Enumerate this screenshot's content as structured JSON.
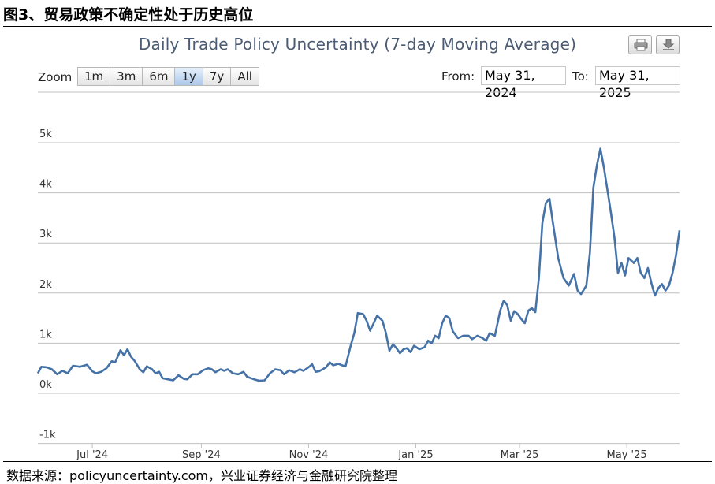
{
  "figure_title": "图3、贸易政策不确定性处于历史高位",
  "source": "数据来源：policyuncertainty.com，兴业证券经济与金融研究院整理",
  "toolbar": {
    "zoom_label": "Zoom",
    "zoom_buttons": [
      {
        "label": "1m",
        "active": false
      },
      {
        "label": "3m",
        "active": false
      },
      {
        "label": "6m",
        "active": false
      },
      {
        "label": "1y",
        "active": true
      },
      {
        "label": "7y",
        "active": false
      },
      {
        "label": "All",
        "active": false
      }
    ],
    "from_label": "From:",
    "from_value": "May 31, 2024",
    "to_label": "To:",
    "to_value": "May 31, 2025",
    "print_icon": "print-icon",
    "download_icon": "download-icon"
  },
  "chart_data": {
    "type": "line",
    "title": "Daily Trade Policy Uncertainty (7-day Moving Average)",
    "y_ticks": [
      {
        "value": -1000,
        "label": "-1k"
      },
      {
        "value": 0,
        "label": "0k"
      },
      {
        "value": 1000,
        "label": "1k"
      },
      {
        "value": 2000,
        "label": "2k"
      },
      {
        "value": 3000,
        "label": "3k"
      },
      {
        "value": 4000,
        "label": "4k"
      },
      {
        "value": 5000,
        "label": "5k"
      }
    ],
    "x_ticks": [
      {
        "date": "2024-07-01",
        "label": "Jul '24"
      },
      {
        "date": "2024-09-01",
        "label": "Sep '24"
      },
      {
        "date": "2024-11-01",
        "label": "Nov '24"
      },
      {
        "date": "2025-01-01",
        "label": "Jan '25"
      },
      {
        "date": "2025-03-01",
        "label": "Mar '25"
      },
      {
        "date": "2025-05-01",
        "label": "May '25"
      }
    ],
    "ylim": [
      -1000,
      5000
    ],
    "xlim": [
      "2024-05-31",
      "2025-05-31"
    ],
    "line_color": "#4572a7",
    "grid": true,
    "points": [
      [
        "2024-05-31",
        400
      ],
      [
        "2024-06-02",
        530
      ],
      [
        "2024-06-05",
        520
      ],
      [
        "2024-06-08",
        480
      ],
      [
        "2024-06-11",
        380
      ],
      [
        "2024-06-14",
        450
      ],
      [
        "2024-06-17",
        400
      ],
      [
        "2024-06-20",
        550
      ],
      [
        "2024-06-24",
        530
      ],
      [
        "2024-06-28",
        570
      ],
      [
        "2024-07-01",
        440
      ],
      [
        "2024-07-03",
        400
      ],
      [
        "2024-07-06",
        430
      ],
      [
        "2024-07-09",
        500
      ],
      [
        "2024-07-12",
        640
      ],
      [
        "2024-07-14",
        620
      ],
      [
        "2024-07-17",
        860
      ],
      [
        "2024-07-19",
        760
      ],
      [
        "2024-07-21",
        880
      ],
      [
        "2024-07-23",
        730
      ],
      [
        "2024-07-25",
        650
      ],
      [
        "2024-07-28",
        480
      ],
      [
        "2024-07-30",
        420
      ],
      [
        "2024-08-01",
        540
      ],
      [
        "2024-08-04",
        480
      ],
      [
        "2024-08-06",
        400
      ],
      [
        "2024-08-08",
        430
      ],
      [
        "2024-08-10",
        300
      ],
      [
        "2024-08-13",
        280
      ],
      [
        "2024-08-16",
        260
      ],
      [
        "2024-08-19",
        360
      ],
      [
        "2024-08-22",
        290
      ],
      [
        "2024-08-24",
        280
      ],
      [
        "2024-08-27",
        380
      ],
      [
        "2024-08-30",
        380
      ],
      [
        "2024-09-02",
        460
      ],
      [
        "2024-09-05",
        500
      ],
      [
        "2024-09-07",
        480
      ],
      [
        "2024-09-09",
        420
      ],
      [
        "2024-09-12",
        480
      ],
      [
        "2024-09-14",
        450
      ],
      [
        "2024-09-16",
        480
      ],
      [
        "2024-09-19",
        400
      ],
      [
        "2024-09-22",
        380
      ],
      [
        "2024-09-25",
        430
      ],
      [
        "2024-09-27",
        330
      ],
      [
        "2024-10-01",
        280
      ],
      [
        "2024-10-04",
        250
      ],
      [
        "2024-10-07",
        260
      ],
      [
        "2024-10-10",
        400
      ],
      [
        "2024-10-13",
        480
      ],
      [
        "2024-10-16",
        460
      ],
      [
        "2024-10-18",
        380
      ],
      [
        "2024-10-21",
        460
      ],
      [
        "2024-10-24",
        420
      ],
      [
        "2024-10-27",
        480
      ],
      [
        "2024-10-29",
        450
      ],
      [
        "2024-11-01",
        520
      ],
      [
        "2024-11-03",
        580
      ],
      [
        "2024-11-05",
        430
      ],
      [
        "2024-11-07",
        440
      ],
      [
        "2024-11-09",
        480
      ],
      [
        "2024-11-11",
        520
      ],
      [
        "2024-11-13",
        620
      ],
      [
        "2024-11-15",
        560
      ],
      [
        "2024-11-18",
        590
      ],
      [
        "2024-11-20",
        560
      ],
      [
        "2024-11-22",
        540
      ],
      [
        "2024-11-25",
        960
      ],
      [
        "2024-11-27",
        1200
      ],
      [
        "2024-11-29",
        1600
      ],
      [
        "2024-12-02",
        1580
      ],
      [
        "2024-12-04",
        1450
      ],
      [
        "2024-12-06",
        1250
      ],
      [
        "2024-12-08",
        1400
      ],
      [
        "2024-12-10",
        1550
      ],
      [
        "2024-12-13",
        1450
      ],
      [
        "2024-12-15",
        1200
      ],
      [
        "2024-12-17",
        850
      ],
      [
        "2024-12-19",
        980
      ],
      [
        "2024-12-21",
        900
      ],
      [
        "2024-12-23",
        800
      ],
      [
        "2024-12-25",
        880
      ],
      [
        "2024-12-27",
        900
      ],
      [
        "2024-12-29",
        820
      ],
      [
        "2024-12-31",
        950
      ],
      [
        "2025-01-03",
        880
      ],
      [
        "2025-01-06",
        920
      ],
      [
        "2025-01-08",
        1050
      ],
      [
        "2025-01-10",
        1000
      ],
      [
        "2025-01-12",
        1150
      ],
      [
        "2025-01-14",
        1100
      ],
      [
        "2025-01-16",
        1400
      ],
      [
        "2025-01-18",
        1550
      ],
      [
        "2025-01-20",
        1500
      ],
      [
        "2025-01-22",
        1240
      ],
      [
        "2025-01-25",
        1100
      ],
      [
        "2025-01-28",
        1150
      ],
      [
        "2025-01-31",
        1150
      ],
      [
        "2025-02-02",
        1080
      ],
      [
        "2025-02-05",
        1150
      ],
      [
        "2025-02-08",
        1100
      ],
      [
        "2025-02-10",
        1050
      ],
      [
        "2025-02-12",
        1200
      ],
      [
        "2025-02-15",
        1150
      ],
      [
        "2025-02-18",
        1650
      ],
      [
        "2025-02-20",
        1850
      ],
      [
        "2025-02-22",
        1760
      ],
      [
        "2025-02-24",
        1450
      ],
      [
        "2025-02-26",
        1640
      ],
      [
        "2025-02-28",
        1580
      ],
      [
        "2025-03-02",
        1480
      ],
      [
        "2025-03-04",
        1400
      ],
      [
        "2025-03-06",
        1650
      ],
      [
        "2025-03-08",
        1700
      ],
      [
        "2025-03-10",
        1620
      ],
      [
        "2025-03-12",
        2300
      ],
      [
        "2025-03-14",
        3400
      ],
      [
        "2025-03-16",
        3800
      ],
      [
        "2025-03-18",
        3880
      ],
      [
        "2025-03-20",
        3400
      ],
      [
        "2025-03-23",
        2700
      ],
      [
        "2025-03-26",
        2300
      ],
      [
        "2025-03-29",
        2150
      ],
      [
        "2025-04-01",
        2380
      ],
      [
        "2025-04-03",
        2050
      ],
      [
        "2025-04-05",
        1980
      ],
      [
        "2025-04-08",
        2150
      ],
      [
        "2025-04-10",
        2800
      ],
      [
        "2025-04-12",
        4100
      ],
      [
        "2025-04-14",
        4550
      ],
      [
        "2025-04-16",
        4880
      ],
      [
        "2025-04-18",
        4500
      ],
      [
        "2025-04-20",
        4050
      ],
      [
        "2025-04-22",
        3600
      ],
      [
        "2025-04-24",
        3100
      ],
      [
        "2025-04-26",
        2400
      ],
      [
        "2025-04-28",
        2600
      ],
      [
        "2025-04-30",
        2350
      ],
      [
        "2025-05-02",
        2700
      ],
      [
        "2025-05-05",
        2600
      ],
      [
        "2025-05-07",
        2700
      ],
      [
        "2025-05-09",
        2400
      ],
      [
        "2025-05-11",
        2300
      ],
      [
        "2025-05-13",
        2500
      ],
      [
        "2025-05-15",
        2200
      ],
      [
        "2025-05-17",
        1950
      ],
      [
        "2025-05-19",
        2100
      ],
      [
        "2025-05-21",
        2180
      ],
      [
        "2025-05-23",
        2050
      ],
      [
        "2025-05-25",
        2150
      ],
      [
        "2025-05-27",
        2400
      ],
      [
        "2025-05-29",
        2750
      ],
      [
        "2025-05-31",
        3250
      ]
    ]
  }
}
